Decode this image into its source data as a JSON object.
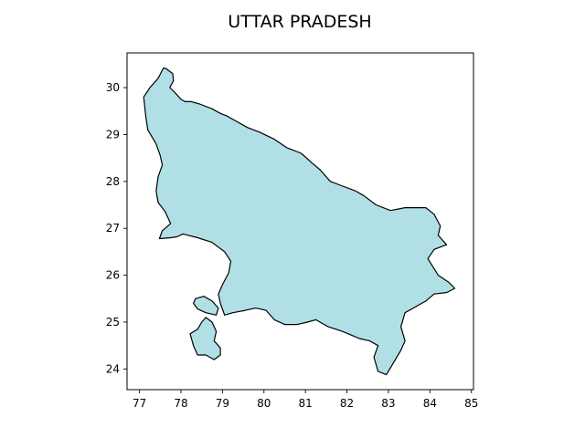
{
  "map": {
    "title": "UTTAR PRADESH",
    "region_name": "Uttar Pradesh",
    "fill_color": "#b0e0e6",
    "edge_color": "#000000",
    "x_range": [
      76.7,
      85.05
    ],
    "y_range": [
      23.56,
      30.74
    ],
    "x_ticks": [
      "77",
      "78",
      "79",
      "80",
      "81",
      "82",
      "83",
      "84",
      "85"
    ],
    "y_ticks": [
      "24",
      "25",
      "26",
      "27",
      "28",
      "29",
      "30"
    ]
  },
  "chart_data": {
    "type": "map",
    "title": "UTTAR PRADESH",
    "xlabel": "",
    "ylabel": "",
    "xlim": [
      76.7,
      85.05
    ],
    "ylim": [
      23.56,
      30.74
    ],
    "x_ticks": [
      77,
      78,
      79,
      80,
      81,
      82,
      83,
      84,
      85
    ],
    "y_ticks": [
      24,
      25,
      26,
      27,
      28,
      29,
      30
    ],
    "grid": false,
    "outline_lonlat": [
      [
        77.65,
        30.4
      ],
      [
        77.8,
        30.3
      ],
      [
        77.82,
        30.15
      ],
      [
        77.73,
        30.0
      ],
      [
        77.85,
        29.9
      ],
      [
        78.0,
        29.75
      ],
      [
        78.1,
        29.7
      ],
      [
        78.25,
        29.7
      ],
      [
        78.45,
        29.65
      ],
      [
        78.75,
        29.55
      ],
      [
        78.95,
        29.45
      ],
      [
        79.1,
        29.4
      ],
      [
        79.3,
        29.3
      ],
      [
        79.6,
        29.15
      ],
      [
        79.9,
        29.05
      ],
      [
        80.25,
        28.9
      ],
      [
        80.55,
        28.72
      ],
      [
        80.9,
        28.6
      ],
      [
        81.15,
        28.4
      ],
      [
        81.35,
        28.25
      ],
      [
        81.6,
        28.0
      ],
      [
        81.9,
        27.9
      ],
      [
        82.2,
        27.8
      ],
      [
        82.4,
        27.7
      ],
      [
        82.7,
        27.5
      ],
      [
        83.05,
        27.38
      ],
      [
        83.4,
        27.44
      ],
      [
        83.9,
        27.44
      ],
      [
        84.1,
        27.3
      ],
      [
        84.25,
        27.05
      ],
      [
        84.2,
        26.85
      ],
      [
        84.4,
        26.65
      ],
      [
        84.1,
        26.55
      ],
      [
        83.95,
        26.35
      ],
      [
        84.2,
        26.0
      ],
      [
        84.45,
        25.85
      ],
      [
        84.6,
        25.72
      ],
      [
        84.4,
        25.63
      ],
      [
        84.1,
        25.6
      ],
      [
        83.9,
        25.45
      ],
      [
        83.6,
        25.3
      ],
      [
        83.4,
        25.2
      ],
      [
        83.3,
        24.9
      ],
      [
        83.4,
        24.6
      ],
      [
        83.3,
        24.4
      ],
      [
        83.1,
        24.1
      ],
      [
        82.95,
        23.88
      ],
      [
        82.75,
        23.95
      ],
      [
        82.65,
        24.25
      ],
      [
        82.75,
        24.5
      ],
      [
        82.55,
        24.6
      ],
      [
        82.3,
        24.65
      ],
      [
        81.9,
        24.8
      ],
      [
        81.55,
        24.9
      ],
      [
        81.25,
        25.05
      ],
      [
        81.05,
        25.0
      ],
      [
        80.8,
        24.95
      ],
      [
        80.5,
        24.95
      ],
      [
        80.25,
        25.05
      ],
      [
        80.05,
        25.25
      ],
      [
        79.8,
        25.3
      ],
      [
        79.55,
        25.25
      ],
      [
        79.25,
        25.2
      ],
      [
        79.05,
        25.15
      ],
      [
        78.95,
        25.4
      ],
      [
        78.9,
        25.6
      ],
      [
        79.0,
        25.8
      ],
      [
        79.15,
        26.05
      ],
      [
        79.2,
        26.3
      ],
      [
        79.05,
        26.5
      ],
      [
        78.9,
        26.6
      ],
      [
        78.75,
        26.7
      ],
      [
        78.4,
        26.8
      ],
      [
        78.05,
        26.88
      ],
      [
        77.9,
        26.82
      ],
      [
        77.75,
        26.8
      ],
      [
        77.48,
        26.78
      ],
      [
        77.55,
        26.95
      ],
      [
        77.75,
        27.1
      ],
      [
        77.62,
        27.35
      ],
      [
        77.45,
        27.55
      ],
      [
        77.4,
        27.8
      ],
      [
        77.45,
        28.1
      ],
      [
        77.55,
        28.35
      ],
      [
        77.5,
        28.55
      ],
      [
        77.4,
        28.8
      ],
      [
        77.2,
        29.1
      ],
      [
        77.15,
        29.4
      ],
      [
        77.1,
        29.8
      ],
      [
        77.25,
        30.0
      ],
      [
        77.45,
        30.2
      ],
      [
        77.58,
        30.42
      ]
    ],
    "exclave_lonlat": [
      [
        78.4,
        24.85
      ],
      [
        78.5,
        25.0
      ],
      [
        78.6,
        25.1
      ],
      [
        78.75,
        25.0
      ],
      [
        78.85,
        24.8
      ],
      [
        78.8,
        24.6
      ],
      [
        78.95,
        24.45
      ],
      [
        78.95,
        24.3
      ],
      [
        78.8,
        24.2
      ],
      [
        78.6,
        24.3
      ],
      [
        78.4,
        24.3
      ],
      [
        78.3,
        24.5
      ],
      [
        78.22,
        24.75
      ]
    ],
    "lobe_lonlat": [
      [
        78.35,
        25.5
      ],
      [
        78.55,
        25.55
      ],
      [
        78.75,
        25.45
      ],
      [
        78.9,
        25.3
      ],
      [
        78.85,
        25.15
      ],
      [
        78.6,
        25.2
      ],
      [
        78.4,
        25.28
      ],
      [
        78.3,
        25.4
      ]
    ]
  }
}
